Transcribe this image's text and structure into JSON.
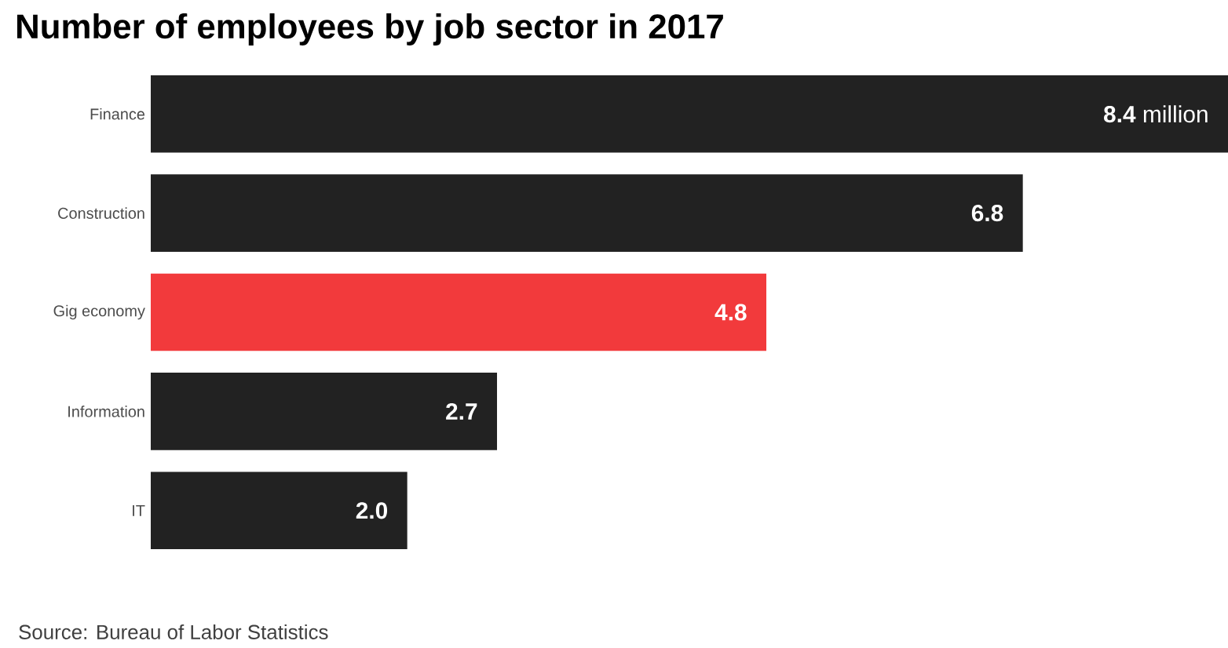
{
  "chart_data": {
    "type": "bar",
    "orientation": "horizontal",
    "title": "Number of employees by job sector in 2017",
    "categories": [
      "Finance",
      "Construction",
      "Gig economy",
      "Information",
      "IT"
    ],
    "values": [
      8.4,
      6.8,
      4.8,
      2.7,
      2.0
    ],
    "colors": [
      "#222222",
      "#222222",
      "#f23a3c",
      "#222222",
      "#222222"
    ],
    "value_labels": [
      "**8.4** million",
      "**6.8**",
      "**4.8**",
      "**2.7**",
      "**2.0**"
    ],
    "tick_labels": "y",
    "annotations": [
      "Source: Bureau of Labor Statistics"
    ]
  }
}
